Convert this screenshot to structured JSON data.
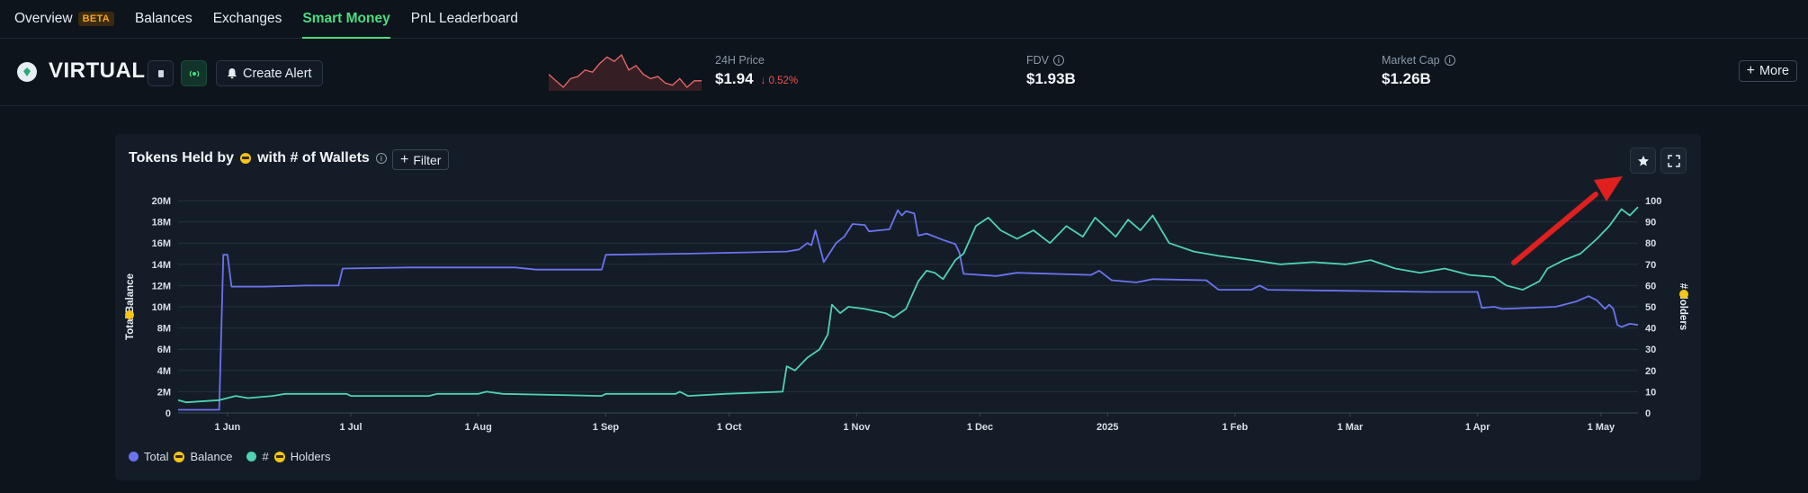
{
  "nav": {
    "items": [
      {
        "label": "Overview",
        "badge": "BETA"
      },
      {
        "label": "Balances"
      },
      {
        "label": "Exchanges"
      },
      {
        "label": "Smart Money",
        "active": true
      },
      {
        "label": "PnL Leaderboard"
      }
    ]
  },
  "token": {
    "name": "VIRTUAL",
    "create_alert_label": "Create Alert",
    "price_label": "24H Price",
    "price_value": "$1.94",
    "price_change": "0.52%",
    "fdv_label": "FDV",
    "fdv_value": "$1.93B",
    "mcap_label": "Market Cap",
    "mcap_value": "$1.26B",
    "more_label": "More",
    "sparkline": [
      1.97,
      1.94,
      1.91,
      1.95,
      1.96,
      1.99,
      1.98,
      2.02,
      2.05,
      2.03,
      2.06,
      1.99,
      2.01,
      1.97,
      1.95,
      1.96,
      1.93,
      1.92,
      1.95,
      1.91,
      1.94,
      1.94
    ]
  },
  "colors": {
    "balance": "#6c72f0",
    "holders": "#4fd1b5",
    "accent": "#4ade80",
    "negative": "#f05252"
  },
  "icons": {
    "star": "star-icon",
    "expand": "fullscreen-icon",
    "bell": "bell-icon",
    "plus": "plus-icon"
  },
  "chart": {
    "title_prefix": "Tokens Held by",
    "title_suffix": "with # of Wallets",
    "filter_label": "Filter",
    "legend": [
      {
        "label_prefix": "Total",
        "label_suffix": "Balance",
        "color": "#6c72f0"
      },
      {
        "label_prefix": "#",
        "label_suffix": "Holders",
        "color": "#4fd1b5"
      }
    ]
  },
  "chart_data": {
    "type": "line",
    "ylabel_left_prefix": "Total",
    "ylabel_left_suffix": "Balance",
    "ylabel_right_prefix": "#",
    "ylabel_right_suffix": "Holders",
    "left_ticks": [
      "0",
      "2M",
      "4M",
      "6M",
      "8M",
      "10M",
      "12M",
      "14M",
      "16M",
      "18M",
      "20M"
    ],
    "right_ticks": [
      "0",
      "10",
      "20",
      "30",
      "40",
      "50",
      "60",
      "70",
      "80",
      "90",
      "100"
    ],
    "ylim_left": [
      0,
      20000000
    ],
    "ylim_right": [
      0,
      100
    ],
    "x_tick_labels": [
      "1 Jun",
      "1 Jul",
      "1 Aug",
      "1 Sep",
      "1 Oct",
      "1 Nov",
      "1 Dec",
      "2025",
      "1 Feb",
      "1 Mar",
      "1 Apr",
      "1 May"
    ],
    "x_tick_dates": [
      "2024-06-01",
      "2024-07-01",
      "2024-08-01",
      "2024-09-01",
      "2024-10-01",
      "2024-11-01",
      "2024-12-01",
      "2025-01-01",
      "2025-02-01",
      "2025-03-01",
      "2025-04-01",
      "2025-05-01"
    ],
    "xlim": [
      "2024-05-20",
      "2025-05-10"
    ],
    "grid": true,
    "legend_position": "bottom-left",
    "series": [
      {
        "name": "Total Balance",
        "axis": "left",
        "points": [
          [
            "2024-05-20",
            300000
          ],
          [
            "2024-05-30",
            300000
          ],
          [
            "2024-05-31",
            14900000
          ],
          [
            "2024-06-01",
            14900000
          ],
          [
            "2024-06-02",
            11900000
          ],
          [
            "2024-06-10",
            11900000
          ],
          [
            "2024-06-20",
            12000000
          ],
          [
            "2024-06-28",
            12000000
          ],
          [
            "2024-06-29",
            13600000
          ],
          [
            "2024-07-15",
            13700000
          ],
          [
            "2024-08-10",
            13700000
          ],
          [
            "2024-08-15",
            13500000
          ],
          [
            "2024-08-31",
            13500000
          ],
          [
            "2024-09-01",
            14900000
          ],
          [
            "2024-09-20",
            15000000
          ],
          [
            "2024-10-15",
            15200000
          ],
          [
            "2024-10-18",
            15400000
          ],
          [
            "2024-10-20",
            16000000
          ],
          [
            "2024-10-21",
            15800000
          ],
          [
            "2024-10-22",
            17200000
          ],
          [
            "2024-10-24",
            14200000
          ],
          [
            "2024-10-27",
            16000000
          ],
          [
            "2024-10-29",
            16600000
          ],
          [
            "2024-10-31",
            17800000
          ],
          [
            "2024-11-03",
            17700000
          ],
          [
            "2024-11-04",
            17100000
          ],
          [
            "2024-11-09",
            17300000
          ],
          [
            "2024-11-11",
            19100000
          ],
          [
            "2024-11-12",
            18600000
          ],
          [
            "2024-11-13",
            19000000
          ],
          [
            "2024-11-15",
            18800000
          ],
          [
            "2024-11-16",
            16700000
          ],
          [
            "2024-11-18",
            16900000
          ],
          [
            "2024-11-22",
            16300000
          ],
          [
            "2024-11-25",
            15900000
          ],
          [
            "2024-11-26",
            15100000
          ],
          [
            "2024-11-27",
            13100000
          ],
          [
            "2024-12-05",
            12900000
          ],
          [
            "2024-12-10",
            13200000
          ],
          [
            "2024-12-28",
            13000000
          ],
          [
            "2024-12-30",
            13400000
          ],
          [
            "2025-01-02",
            12500000
          ],
          [
            "2025-01-08",
            12300000
          ],
          [
            "2025-01-12",
            12600000
          ],
          [
            "2025-01-25",
            12500000
          ],
          [
            "2025-01-28",
            11600000
          ],
          [
            "2025-02-05",
            11600000
          ],
          [
            "2025-02-07",
            12000000
          ],
          [
            "2025-02-09",
            11600000
          ],
          [
            "2025-03-01",
            11500000
          ],
          [
            "2025-03-20",
            11400000
          ],
          [
            "2025-04-01",
            11400000
          ],
          [
            "2025-04-02",
            9900000
          ],
          [
            "2025-04-05",
            10000000
          ],
          [
            "2025-04-07",
            9800000
          ],
          [
            "2025-04-20",
            10000000
          ],
          [
            "2025-04-25",
            10500000
          ],
          [
            "2025-04-28",
            11000000
          ],
          [
            "2025-04-30",
            10600000
          ],
          [
            "2025-05-02",
            9800000
          ],
          [
            "2025-05-03",
            10200000
          ],
          [
            "2025-05-04",
            9800000
          ],
          [
            "2025-05-05",
            8300000
          ],
          [
            "2025-05-06",
            8100000
          ],
          [
            "2025-05-08",
            8400000
          ],
          [
            "2025-05-10",
            8300000
          ]
        ]
      },
      {
        "name": "# Holders",
        "axis": "right",
        "points": [
          [
            "2024-05-20",
            6
          ],
          [
            "2024-05-22",
            5
          ],
          [
            "2024-05-30",
            6
          ],
          [
            "2024-06-03",
            8
          ],
          [
            "2024-06-06",
            7
          ],
          [
            "2024-06-12",
            8
          ],
          [
            "2024-06-15",
            9
          ],
          [
            "2024-06-30",
            9
          ],
          [
            "2024-07-01",
            8
          ],
          [
            "2024-07-20",
            8
          ],
          [
            "2024-07-22",
            9
          ],
          [
            "2024-08-01",
            9
          ],
          [
            "2024-08-03",
            10
          ],
          [
            "2024-08-07",
            9
          ],
          [
            "2024-08-31",
            8
          ],
          [
            "2024-09-01",
            9
          ],
          [
            "2024-09-18",
            9
          ],
          [
            "2024-09-19",
            10
          ],
          [
            "2024-09-21",
            8
          ],
          [
            "2024-09-30",
            9
          ],
          [
            "2024-10-14",
            10
          ],
          [
            "2024-10-15",
            22
          ],
          [
            "2024-10-17",
            20
          ],
          [
            "2024-10-20",
            26
          ],
          [
            "2024-10-23",
            30
          ],
          [
            "2024-10-25",
            37
          ],
          [
            "2024-10-26",
            51
          ],
          [
            "2024-10-28",
            47
          ],
          [
            "2024-10-30",
            50
          ],
          [
            "2024-11-03",
            49
          ],
          [
            "2024-11-08",
            47
          ],
          [
            "2024-11-10",
            45
          ],
          [
            "2024-11-13",
            49
          ],
          [
            "2024-11-16",
            62
          ],
          [
            "2024-11-18",
            67
          ],
          [
            "2024-11-20",
            66
          ],
          [
            "2024-11-22",
            63
          ],
          [
            "2024-11-25",
            72
          ],
          [
            "2024-11-27",
            75
          ],
          [
            "2024-11-30",
            88
          ],
          [
            "2024-12-03",
            92
          ],
          [
            "2024-12-06",
            86
          ],
          [
            "2024-12-10",
            82
          ],
          [
            "2024-12-14",
            86
          ],
          [
            "2024-12-18",
            80
          ],
          [
            "2024-12-22",
            88
          ],
          [
            "2024-12-26",
            83
          ],
          [
            "2024-12-29",
            92
          ],
          [
            "2025-01-03",
            83
          ],
          [
            "2025-01-06",
            91
          ],
          [
            "2025-01-09",
            86
          ],
          [
            "2025-01-12",
            93
          ],
          [
            "2025-01-16",
            80
          ],
          [
            "2025-01-22",
            76
          ],
          [
            "2025-01-28",
            74
          ],
          [
            "2025-02-05",
            72
          ],
          [
            "2025-02-12",
            70
          ],
          [
            "2025-02-20",
            71
          ],
          [
            "2025-02-28",
            70
          ],
          [
            "2025-03-06",
            72
          ],
          [
            "2025-03-12",
            68
          ],
          [
            "2025-03-18",
            66
          ],
          [
            "2025-03-24",
            68
          ],
          [
            "2025-03-30",
            65
          ],
          [
            "2025-04-05",
            64
          ],
          [
            "2025-04-08",
            60
          ],
          [
            "2025-04-12",
            58
          ],
          [
            "2025-04-16",
            62
          ],
          [
            "2025-04-18",
            68
          ],
          [
            "2025-04-22",
            72
          ],
          [
            "2025-04-26",
            75
          ],
          [
            "2025-04-30",
            82
          ],
          [
            "2025-05-03",
            88
          ],
          [
            "2025-05-06",
            96
          ],
          [
            "2025-05-08",
            93
          ],
          [
            "2025-05-10",
            97
          ]
        ]
      }
    ]
  }
}
